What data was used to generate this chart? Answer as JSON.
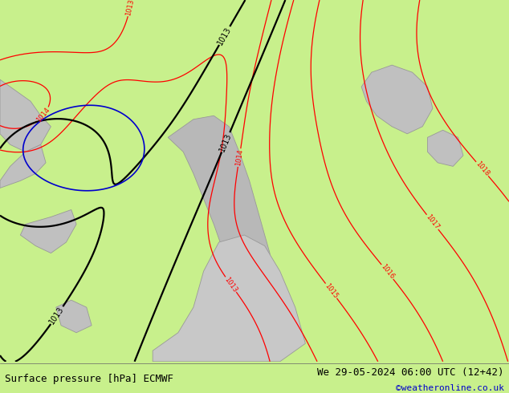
{
  "title_left": "Surface pressure [hPa] ECMWF",
  "title_right": "We 29-05-2024 06:00 UTC (12+42)",
  "watermark": "©weatheronline.co.uk",
  "bg_color": "#c8f08c",
  "grey_color": "#c0c0c0",
  "grey_edge": "#999999",
  "contour_color_red": "#ff0000",
  "contour_color_black": "#000000",
  "contour_color_blue": "#0000cc",
  "text_color_bottom": "#000000",
  "watermark_color": "#0000cc",
  "figsize": [
    6.34,
    4.9
  ],
  "dpi": 100,
  "font_size_bottom": 9,
  "font_size_watermark": 8,
  "font_family": "monospace"
}
